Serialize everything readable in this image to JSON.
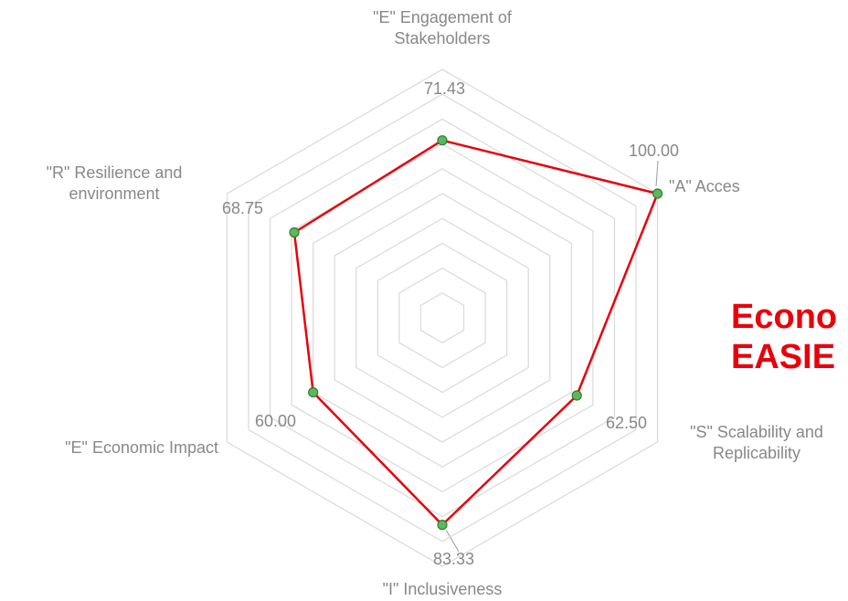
{
  "chart_data": {
    "type": "radar",
    "title": [
      "Econo",
      "EASIE"
    ],
    "categories": [
      "\"E\" Engagement of Stakeholders",
      "\"A\" Acces",
      "\"S\" Scalability and Replicability",
      "\"I\" Inclusiveness",
      "\"E\" Economic Impact",
      "\"R\" Resilience and environment"
    ],
    "series": [
      {
        "color": "#e8000b",
        "marker_color": "#5cb85c",
        "values": [
          71.43,
          100,
          62.5,
          83.33,
          60,
          68.75
        ],
        "value_labels": [
          "71.43",
          "100.00",
          "62.50",
          "83.33",
          "60.00",
          "68.75"
        ]
      }
    ],
    "ylim": [
      0,
      100
    ],
    "yticks": [
      0,
      10,
      20,
      30,
      40,
      50,
      60,
      70,
      80,
      90,
      100
    ],
    "grid": true
  }
}
